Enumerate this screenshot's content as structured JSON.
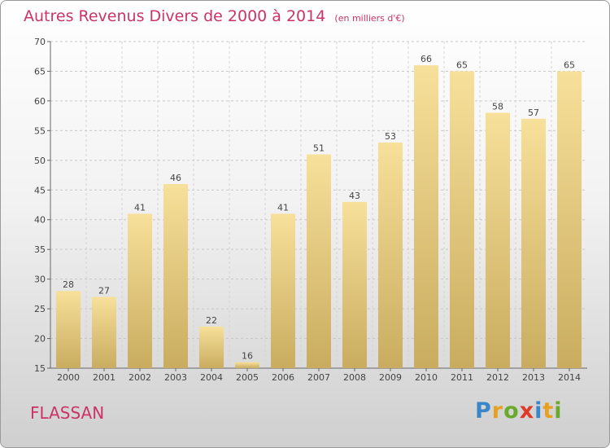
{
  "chart_data": {
    "type": "bar",
    "title": "Autres Revenus Divers de 2000 à 2014",
    "unit_label": "(en milliers d'€)",
    "categories": [
      "2000",
      "2001",
      "2002",
      "2003",
      "2004",
      "2005",
      "2006",
      "2007",
      "2008",
      "2009",
      "2010",
      "2011",
      "2012",
      "2013",
      "2014"
    ],
    "values": [
      28,
      27,
      41,
      46,
      22,
      16,
      41,
      51,
      43,
      53,
      66,
      65,
      58,
      57,
      65
    ],
    "ylim": [
      15,
      70
    ],
    "yticks": [
      15,
      20,
      25,
      30,
      35,
      40,
      45,
      50,
      55,
      60,
      65,
      70
    ],
    "grid": true,
    "xlabel": "",
    "ylabel": ""
  },
  "footer": {
    "city": "FLASSAN",
    "brand": [
      "P",
      "r",
      "o",
      "x",
      "i",
      "t",
      "i"
    ]
  },
  "colors": {
    "title": "#cc3366",
    "bar_top": "#f7e09a",
    "bar_bottom": "#c9ac5f",
    "brand": [
      "#3a86c8",
      "#e8a020",
      "#6aaa2a",
      "#e03a2a",
      "#3a86c8",
      "#e8a020",
      "#6aaa2a"
    ]
  }
}
